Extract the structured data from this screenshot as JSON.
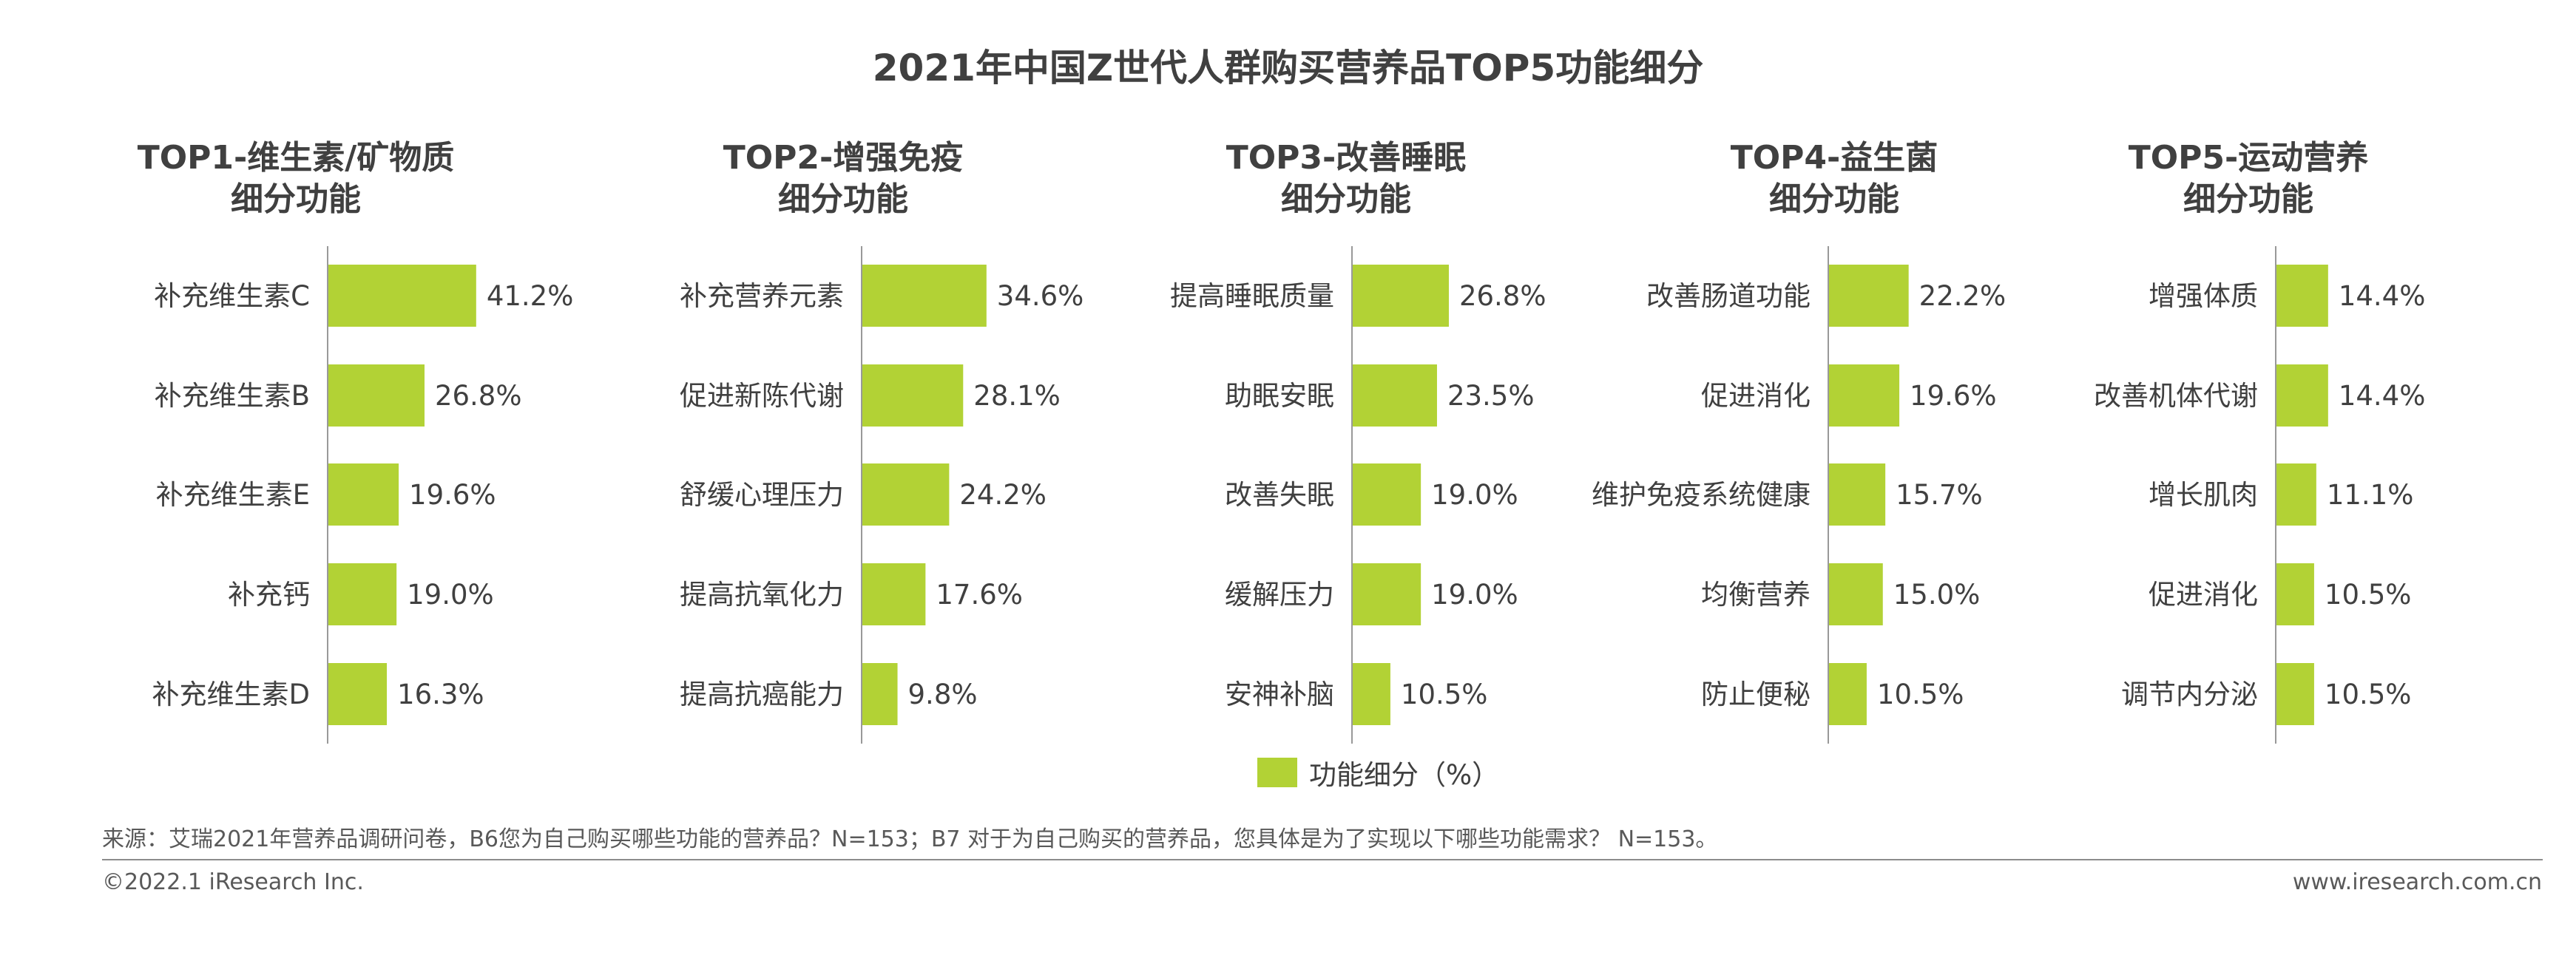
{
  "title": "2021年中国Z世代人群购买营养品TOP5功能细分",
  "colors": {
    "bar": "#b2d235",
    "axis": "#999999",
    "text": "#404040"
  },
  "legend": {
    "label": "功能细分（%）"
  },
  "source": "来源：艾瑞2021年营养品调研问卷，B6您为自己购买哪些功能的营养品？N=153；B7 对于为自己购买的营养品，您具体是为了实现以下哪些功能需求？ N=153。",
  "copyright": "©2022.1 iResearch Inc.",
  "website": "www.iresearch.com.cn",
  "chart_data": [
    {
      "type": "bar",
      "orientation": "horizontal",
      "title_lines": [
        "TOP1-维生素/矿物质",
        "细分功能"
      ],
      "categories": [
        "补充维生素C",
        "补充维生素B",
        "补充维生素E",
        "补充钙",
        "补充维生素D"
      ],
      "values": [
        41.2,
        26.8,
        19.6,
        19.0,
        16.3
      ],
      "value_labels": [
        "41.2%",
        "26.8%",
        "19.6%",
        "19.0%",
        "16.3%"
      ],
      "series": [
        {
          "name": "功能细分（%）",
          "values": [
            41.2,
            26.8,
            19.6,
            19.0,
            16.3
          ]
        }
      ]
    },
    {
      "type": "bar",
      "orientation": "horizontal",
      "title_lines": [
        "TOP2-增强免疫",
        "细分功能"
      ],
      "categories": [
        "补充营养元素",
        "促进新陈代谢",
        "舒缓心理压力",
        "提高抗氧化力",
        "提高抗癌能力"
      ],
      "values": [
        34.6,
        28.1,
        24.2,
        17.6,
        9.8
      ],
      "value_labels": [
        "34.6%",
        "28.1%",
        "24.2%",
        "17.6%",
        "9.8%"
      ],
      "series": [
        {
          "name": "功能细分（%）",
          "values": [
            34.6,
            28.1,
            24.2,
            17.6,
            9.8
          ]
        }
      ]
    },
    {
      "type": "bar",
      "orientation": "horizontal",
      "title_lines": [
        "TOP3-改善睡眠",
        "细分功能"
      ],
      "categories": [
        "提高睡眠质量",
        "助眠安眠",
        "改善失眠",
        "缓解压力",
        "安神补脑"
      ],
      "values": [
        26.8,
        23.5,
        19.0,
        19.0,
        10.5
      ],
      "value_labels": [
        "26.8%",
        "23.5%",
        "19.0%",
        "19.0%",
        "10.5%"
      ],
      "series": [
        {
          "name": "功能细分（%）",
          "values": [
            26.8,
            23.5,
            19.0,
            19.0,
            10.5
          ]
        }
      ]
    },
    {
      "type": "bar",
      "orientation": "horizontal",
      "title_lines": [
        "TOP4-益生菌",
        "细分功能"
      ],
      "categories": [
        "改善肠道功能",
        "促进消化",
        "维护免疫系统健康",
        "均衡营养",
        "防止便秘"
      ],
      "values": [
        22.2,
        19.6,
        15.7,
        15.0,
        10.5
      ],
      "value_labels": [
        "22.2%",
        "19.6%",
        "15.7%",
        "15.0%",
        "10.5%"
      ],
      "series": [
        {
          "name": "功能细分（%）",
          "values": [
            22.2,
            19.6,
            15.7,
            15.0,
            10.5
          ]
        }
      ]
    },
    {
      "type": "bar",
      "orientation": "horizontal",
      "title_lines": [
        "TOP5-运动营养",
        "细分功能"
      ],
      "categories": [
        "增强体质",
        "改善机体代谢",
        "增长肌肉",
        "促进消化",
        "调节内分泌"
      ],
      "values": [
        14.4,
        14.4,
        11.1,
        10.5,
        10.5
      ],
      "value_labels": [
        "14.4%",
        "14.4%",
        "11.1%",
        "10.5%",
        "10.5%"
      ],
      "series": [
        {
          "name": "功能细分（%）",
          "values": [
            14.4,
            14.4,
            11.1,
            10.5,
            10.5
          ]
        }
      ]
    }
  ]
}
